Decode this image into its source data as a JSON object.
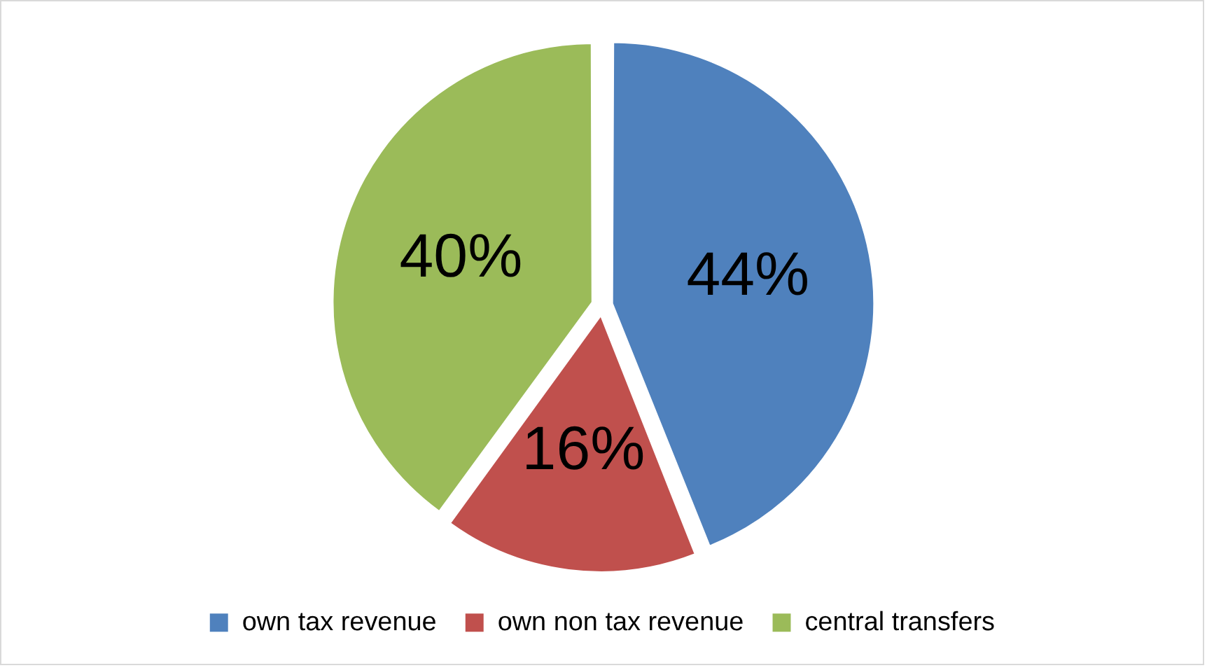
{
  "chart_data": {
    "type": "pie",
    "categories": [
      "own tax revenue",
      "own non tax revenue",
      "central transfers"
    ],
    "values": [
      44,
      16,
      40
    ],
    "colors": [
      "#4f81bd",
      "#c0504d",
      "#9bbb59"
    ],
    "value_labels": [
      "44%",
      "16%",
      "40%"
    ],
    "legend": "bottom"
  }
}
